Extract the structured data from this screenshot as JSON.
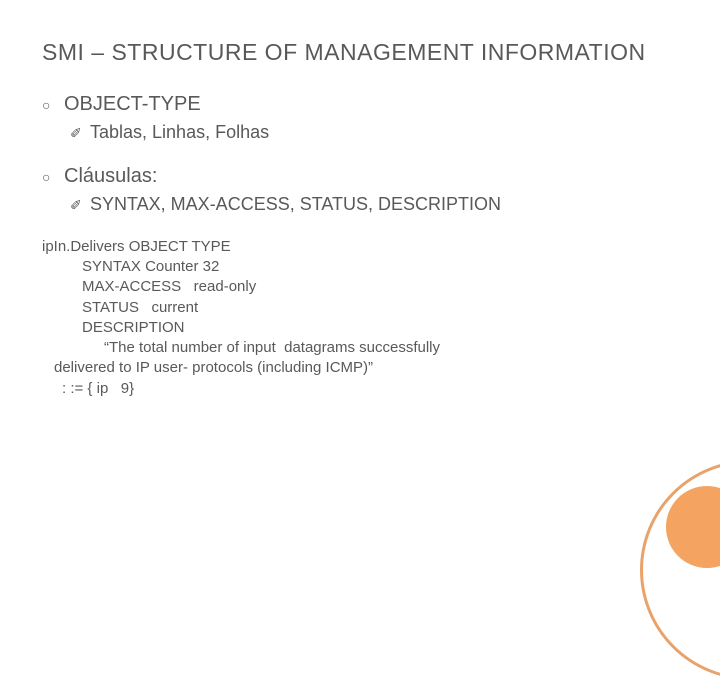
{
  "title": "SMI – STRUCTURE OF MANAGEMENT INFORMATION",
  "items": [
    {
      "label": "OBJECT-TYPE",
      "sub": "Tablas, Linhas, Folhas"
    },
    {
      "label": "Cláusulas:",
      "sub": "SYNTAX, MAX-ACCESS, STATUS, DESCRIPTION"
    }
  ],
  "code": {
    "l1": "ipIn.Delivers OBJECT TYPE",
    "l2": "SYNTAX Counter 32",
    "l3": "MAX-ACCESS   read-only",
    "l4": "STATUS   current",
    "l5": "DESCRIPTION",
    "l6": "“The total number of input  datagrams successfully",
    "l7": "delivered to IP user- protocols (including ICMP)”",
    "l8": ": := { ip   9}"
  },
  "colors": {
    "text": "#595959",
    "accent_fill": "#f4a460",
    "accent_stroke": "#e9a36a",
    "background": "#ffffff"
  },
  "bullets": {
    "level1_glyph": "○",
    "level2_glyph": "✐"
  }
}
